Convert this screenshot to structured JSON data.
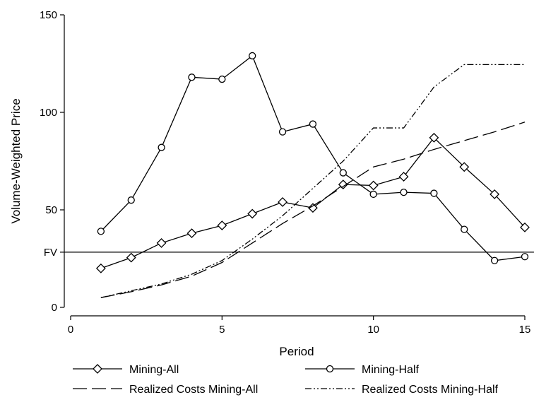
{
  "chart_data": {
    "type": "line",
    "xlabel": "Period",
    "ylabel": "Volume-Weighted Price",
    "xlim": [
      0,
      15
    ],
    "ylim": [
      0,
      150
    ],
    "xticks": [
      0,
      5,
      10,
      15
    ],
    "yticks": [
      {
        "value": 0,
        "label": "0"
      },
      {
        "value": 28.3,
        "label": "FV"
      },
      {
        "value": 50,
        "label": "50"
      },
      {
        "value": 100,
        "label": "100"
      },
      {
        "value": 150,
        "label": "150"
      }
    ],
    "grid": false,
    "legend_position": "bottom",
    "reference_line": {
      "label": "FV",
      "value": 28.3
    },
    "series": [
      {
        "name": "Mining-All",
        "marker": "diamond",
        "dash": "solid",
        "x": [
          1,
          2,
          3,
          4,
          5,
          6,
          7,
          8,
          9,
          10,
          11,
          12,
          13,
          14,
          15
        ],
        "y": [
          20,
          25.5,
          33,
          38,
          42,
          48,
          54,
          51,
          63,
          62.5,
          67,
          87,
          72,
          58,
          41
        ]
      },
      {
        "name": "Mining-Half",
        "marker": "circle",
        "dash": "solid",
        "x": [
          1,
          2,
          3,
          4,
          5,
          6,
          7,
          8,
          9,
          10,
          11,
          12,
          13,
          14,
          15
        ],
        "y": [
          39,
          55,
          82,
          118,
          117,
          129,
          90,
          94,
          69,
          58,
          59,
          58.5,
          40,
          24,
          26
        ]
      },
      {
        "name": "Realized Costs Mining-All",
        "marker": "none",
        "dash": "long-dash",
        "x": [
          1,
          2,
          3,
          4,
          5,
          6,
          7,
          8,
          9,
          10,
          11,
          12,
          13,
          14,
          15
        ],
        "y": [
          5,
          8,
          11.5,
          16,
          23,
          33,
          43,
          52,
          62,
          72,
          76,
          81,
          85.5,
          90,
          95
        ]
      },
      {
        "name": "Realized Costs Mining-Half",
        "marker": "none",
        "dash": "dash-dot-dot",
        "x": [
          1,
          2,
          3,
          4,
          5,
          6,
          7,
          8,
          9,
          10,
          11,
          12,
          13,
          14,
          15
        ],
        "y": [
          5,
          8.5,
          12,
          17,
          24,
          35,
          47,
          61,
          75,
          92,
          92,
          113,
          124.5,
          124.5,
          124.5
        ]
      }
    ]
  }
}
